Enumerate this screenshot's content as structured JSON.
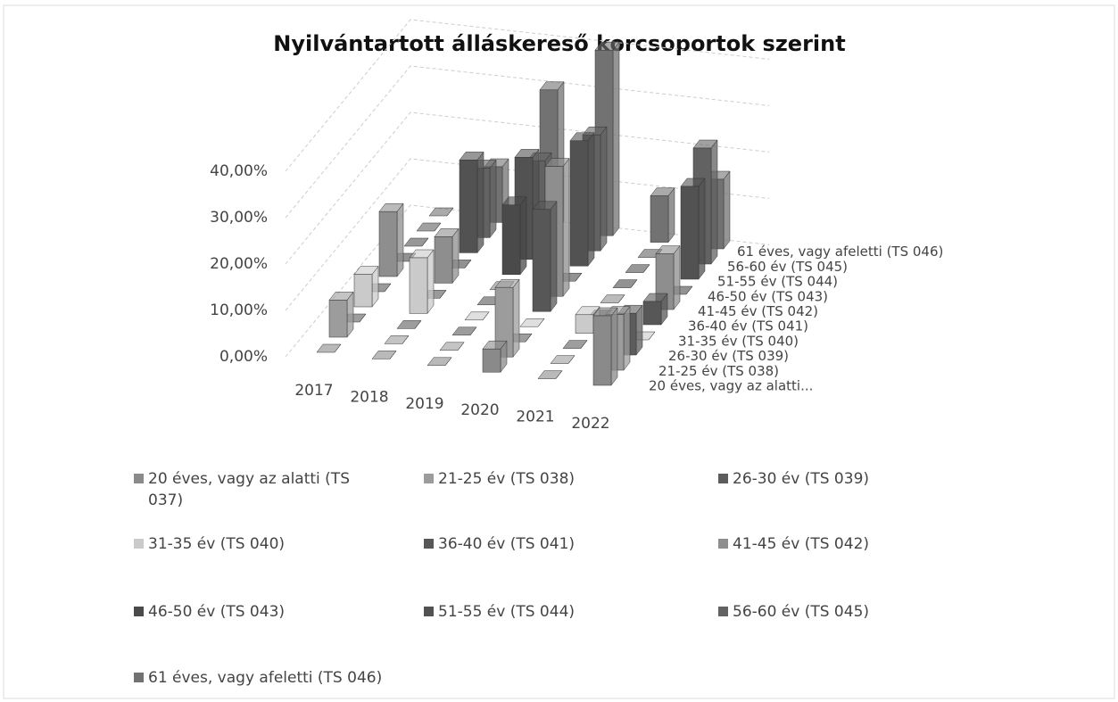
{
  "chart_data": {
    "type": "bar3d",
    "title": "Nyilvántartott álláskereső korcsoportok szerint",
    "categories": [
      "2017",
      "2018",
      "2019",
      "2020",
      "2021",
      "2022"
    ],
    "depth_labels": [
      "20 éves, vagy az alatti...",
      "21-25 év (TS 038)",
      "26-30 év (TS 039)",
      "31-35 év (TS 040)",
      "36-40 év (TS 041)",
      "41-45 év (TS 042)",
      "46-50 év (TS 043)",
      "51-55 év (TS 044)",
      "56-60 év (TS 045)",
      "61 éves, vagy afeletti (TS 046)"
    ],
    "ylim": [
      0,
      45
    ],
    "yticks": [
      {
        "value": 0,
        "label": "0,00%"
      },
      {
        "value": 10,
        "label": "10,00%"
      },
      {
        "value": 20,
        "label": "20,00%"
      },
      {
        "value": 30,
        "label": "30,00%"
      },
      {
        "value": 40,
        "label": "40,00%"
      }
    ],
    "grid": true,
    "series": [
      {
        "name": "20 éves, vagy az alatti (TS 037)",
        "color": "#8a8a8a",
        "values": [
          0,
          0,
          0,
          5,
          0,
          15
        ]
      },
      {
        "name": "21-25 év (TS 038)",
        "color": "#9c9c9c",
        "values": [
          8,
          0,
          0,
          15,
          0,
          12
        ]
      },
      {
        "name": "26-30 év (TS 039)",
        "color": "#5c5c5c",
        "values": [
          0,
          0,
          0,
          0,
          0,
          9
        ]
      },
      {
        "name": "31-35 év (TS 040)",
        "color": "#cacaca",
        "values": [
          7,
          12,
          0,
          0,
          4,
          0
        ]
      },
      {
        "name": "36-40 év (TS 041)",
        "color": "#575757",
        "values": [
          0,
          0,
          0,
          22,
          0,
          5
        ]
      },
      {
        "name": "41-45 év (TS 042)",
        "color": "#8e8e8e",
        "values": [
          14,
          10,
          0,
          28,
          0,
          12
        ]
      },
      {
        "name": "46-50 év (TS 043)",
        "color": "#4a4a4a",
        "values": [
          0,
          0,
          15,
          0,
          0,
          0
        ]
      },
      {
        "name": "51-55 év (TS 044)",
        "color": "#525252",
        "values": [
          0,
          20,
          22,
          27,
          0,
          20
        ]
      },
      {
        "name": "56-60 év (TS 045)",
        "color": "#626262",
        "values": [
          0,
          15,
          18,
          25,
          0,
          25
        ]
      },
      {
        "name": "61 éves, vagy afeletti (TS 046)",
        "color": "#727272",
        "values": [
          0,
          12,
          30,
          40,
          10,
          15
        ]
      }
    ]
  }
}
